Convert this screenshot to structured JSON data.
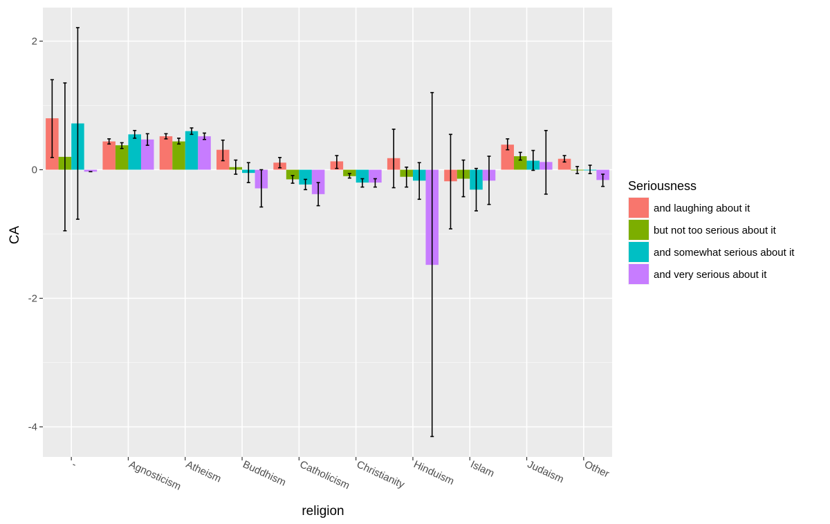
{
  "chart_data": {
    "type": "bar",
    "title": "",
    "xlabel": "religion",
    "ylabel": "CA",
    "ylim": [
      -4.45,
      2.5
    ],
    "yticks": [
      2,
      0,
      -2,
      -4
    ],
    "ytick_labels": [
      "2",
      "0",
      "-2",
      "-4"
    ],
    "categories": [
      "-",
      "Agnosticism",
      "Atheism",
      "Buddhism",
      "Catholicism",
      "Christianity",
      "Hinduism",
      "Islam",
      "Judaism",
      "Other"
    ],
    "legend": {
      "title": "Seriousness",
      "position": "right"
    },
    "series": [
      {
        "name": "and laughing about it",
        "color": "#f8766d",
        "values": [
          0.8,
          0.44,
          0.52,
          0.31,
          0.11,
          0.13,
          0.18,
          -0.18,
          0.39,
          0.17
        ],
        "err_low": [
          0.19,
          0.4,
          0.48,
          0.14,
          0.03,
          0.02,
          -0.28,
          -0.92,
          0.31,
          0.12
        ],
        "err_high": [
          1.4,
          0.48,
          0.56,
          0.46,
          0.19,
          0.22,
          0.63,
          0.55,
          0.48,
          0.22
        ]
      },
      {
        "name": "but not too serious about it",
        "color": "#7cae00",
        "values": [
          0.2,
          0.38,
          0.44,
          0.04,
          -0.15,
          -0.1,
          -0.11,
          -0.14,
          0.21,
          0.0
        ],
        "err_low": [
          -0.95,
          0.33,
          0.4,
          -0.07,
          -0.21,
          -0.13,
          -0.27,
          -0.42,
          0.15,
          -0.06
        ],
        "err_high": [
          1.35,
          0.42,
          0.49,
          0.15,
          -0.09,
          -0.06,
          0.04,
          0.15,
          0.27,
          0.05
        ]
      },
      {
        "name": "and somewhat serious about it",
        "color": "#00bfc4",
        "values": [
          0.72,
          0.55,
          0.6,
          -0.05,
          -0.23,
          -0.2,
          -0.17,
          -0.31,
          0.14,
          0.0
        ],
        "err_low": [
          -0.77,
          0.49,
          0.55,
          -0.2,
          -0.31,
          -0.27,
          -0.46,
          -0.64,
          -0.01,
          -0.06
        ],
        "err_high": [
          2.21,
          0.61,
          0.65,
          0.11,
          -0.15,
          -0.14,
          0.11,
          0.02,
          0.3,
          0.07
        ]
      },
      {
        "name": "and very serious about it",
        "color": "#c77cff",
        "values": [
          -0.03,
          0.47,
          0.52,
          -0.29,
          -0.38,
          -0.2,
          -1.48,
          -0.17,
          0.12,
          -0.16
        ],
        "err_low": [
          -0.03,
          0.38,
          0.47,
          -0.58,
          -0.56,
          -0.27,
          -4.15,
          -0.54,
          -0.38,
          -0.26
        ],
        "err_high": [
          -0.03,
          0.56,
          0.57,
          0.0,
          -0.2,
          -0.14,
          1.2,
          0.21,
          0.61,
          -0.07
        ]
      }
    ]
  }
}
